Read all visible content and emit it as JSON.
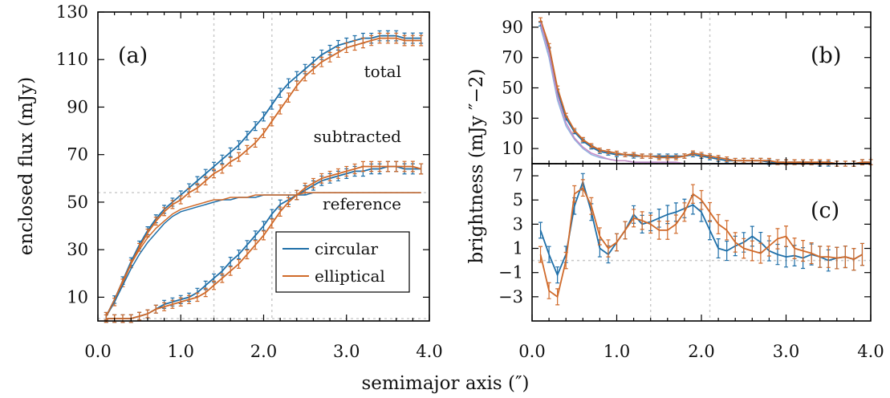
{
  "colors": {
    "circular": "#1f6fa8",
    "elliptical": "#d06a2a",
    "reference_circular": "#8fb3e0",
    "reference_elliptical": "#c48bc6",
    "guide": "#c8c8c8"
  },
  "xlabel": "semimajor axis (″)",
  "legend": {
    "circular": "circular",
    "elliptical": "elliptical"
  },
  "chart_data": [
    {
      "id": "a",
      "type": "line",
      "tag": "(a)",
      "ylabel": "enclosed flux (mJy)",
      "xlim": [
        0.0,
        4.0
      ],
      "ylim": [
        0,
        130
      ],
      "xticks": [
        "0.0",
        "1.0",
        "2.0",
        "3.0",
        "4.0"
      ],
      "yticks": [
        "10",
        "30",
        "50",
        "70",
        "90",
        "110",
        "130"
      ],
      "vlines": [
        1.4,
        2.1
      ],
      "hlines": [
        54,
        1
      ],
      "annotations": {
        "total": "total",
        "subtracted": "subtracted",
        "reference": "reference"
      },
      "x": [
        0.1,
        0.2,
        0.3,
        0.4,
        0.5,
        0.6,
        0.7,
        0.8,
        0.9,
        1.0,
        1.1,
        1.2,
        1.3,
        1.4,
        1.5,
        1.6,
        1.7,
        1.8,
        1.9,
        2.0,
        2.1,
        2.2,
        2.3,
        2.4,
        2.5,
        2.6,
        2.7,
        2.8,
        2.9,
        3.0,
        3.1,
        3.2,
        3.3,
        3.4,
        3.5,
        3.6,
        3.7,
        3.8,
        3.9
      ],
      "series": [
        {
          "name": "circular",
          "group": "total",
          "errorbars": true,
          "values": [
            2,
            9,
            17,
            25,
            32,
            38,
            43,
            47,
            50,
            53,
            56,
            59,
            62,
            65,
            68,
            71,
            74,
            78,
            82,
            86,
            91,
            96,
            100,
            103,
            106,
            109,
            112,
            114,
            116,
            117,
            118,
            119,
            119,
            120,
            120,
            120,
            119,
            119,
            119
          ]
        },
        {
          "name": "elliptical",
          "group": "total",
          "errorbars": true,
          "values": [
            2,
            8,
            16,
            24,
            31,
            37,
            42,
            46,
            49,
            51,
            54,
            56,
            59,
            62,
            64,
            67,
            69,
            72,
            75,
            79,
            84,
            89,
            94,
            99,
            103,
            106,
            109,
            111,
            113,
            115,
            116,
            117,
            118,
            119,
            119,
            119,
            118,
            118,
            118
          ]
        },
        {
          "name": "circular",
          "group": "subtracted",
          "errorbars": true,
          "values": [
            1,
            1,
            1,
            1,
            2,
            3,
            5,
            7,
            8,
            9,
            10,
            12,
            15,
            18,
            21,
            25,
            28,
            32,
            36,
            40,
            45,
            49,
            51,
            53,
            55,
            57,
            59,
            60,
            61,
            62,
            63,
            63,
            64,
            64,
            65,
            65,
            64,
            64,
            64
          ]
        },
        {
          "name": "elliptical",
          "group": "subtracted",
          "errorbars": true,
          "values": [
            1,
            1,
            1,
            1,
            2,
            3,
            5,
            6,
            7,
            8,
            9,
            10,
            12,
            15,
            18,
            21,
            24,
            28,
            32,
            36,
            41,
            46,
            50,
            53,
            56,
            58,
            60,
            61,
            62,
            63,
            64,
            65,
            65,
            65,
            65,
            65,
            65,
            65,
            64
          ]
        },
        {
          "name": "circular",
          "group": "reference",
          "errorbars": false,
          "values": [
            2,
            8,
            15,
            22,
            28,
            33,
            37,
            41,
            44,
            46,
            47,
            48,
            49,
            50,
            51,
            51,
            52,
            52,
            52,
            53,
            53,
            53,
            53,
            53,
            53,
            54,
            54,
            54,
            54,
            54,
            54,
            54,
            54,
            54,
            54,
            54,
            54,
            54,
            54
          ]
        },
        {
          "name": "elliptical",
          "group": "reference",
          "errorbars": false,
          "values": [
            2,
            9,
            17,
            24,
            30,
            35,
            39,
            42,
            45,
            47,
            48,
            49,
            50,
            51,
            51,
            52,
            52,
            52,
            53,
            53,
            53,
            53,
            53,
            53,
            54,
            54,
            54,
            54,
            54,
            54,
            54,
            54,
            54,
            54,
            54,
            54,
            54,
            54,
            54
          ]
        }
      ]
    },
    {
      "id": "b",
      "type": "line",
      "tag": "(b)",
      "ylabel": "brightness (mJy ″−2)",
      "xlim": [
        0.0,
        4.0
      ],
      "ylim": [
        0,
        100
      ],
      "xticks": [],
      "yticks": [
        "10",
        "30",
        "50",
        "70",
        "90"
      ],
      "vlines": [
        1.4,
        2.1
      ],
      "hlines": [
        0
      ],
      "x": [
        0.1,
        0.2,
        0.3,
        0.4,
        0.5,
        0.6,
        0.7,
        0.8,
        0.9,
        1.0,
        1.1,
        1.2,
        1.3,
        1.4,
        1.5,
        1.6,
        1.7,
        1.8,
        1.9,
        2.0,
        2.1,
        2.2,
        2.3,
        2.4,
        2.5,
        2.6,
        2.7,
        2.8,
        2.9,
        3.0,
        3.1,
        3.2,
        3.3,
        3.4,
        3.5,
        3.6,
        3.7,
        3.8,
        3.9,
        4.0
      ],
      "series": [
        {
          "name": "circular",
          "errorbars": true,
          "values": [
            92,
            75,
            48,
            30,
            21,
            15,
            11,
            8,
            7,
            6,
            6,
            5,
            5,
            5,
            5,
            5,
            5,
            5,
            6,
            5,
            4,
            3,
            2,
            2,
            2,
            2,
            2,
            1,
            1,
            1,
            1,
            1,
            1,
            0,
            0,
            0,
            0,
            0,
            1,
            1
          ]
        },
        {
          "name": "elliptical",
          "errorbars": true,
          "values": [
            95,
            78,
            50,
            32,
            22,
            16,
            12,
            9,
            8,
            7,
            6,
            6,
            5,
            5,
            4,
            4,
            4,
            5,
            7,
            6,
            5,
            4,
            3,
            2,
            2,
            2,
            2,
            2,
            1,
            1,
            1,
            1,
            1,
            1,
            1,
            0,
            0,
            0,
            1,
            1
          ]
        },
        {
          "name": "reference circular",
          "errorbars": false,
          "values": [
            90,
            70,
            42,
            25,
            16,
            10,
            6,
            4,
            3,
            2,
            2,
            1,
            1,
            1,
            1,
            1,
            1,
            0,
            0,
            0,
            0,
            0,
            0,
            0,
            0,
            0,
            0,
            0,
            0,
            0,
            0,
            0,
            0,
            0,
            0,
            0,
            0,
            0,
            0,
            0
          ]
        },
        {
          "name": "reference elliptical",
          "errorbars": false,
          "values": [
            93,
            73,
            45,
            27,
            17,
            11,
            7,
            5,
            3,
            2,
            2,
            1,
            1,
            1,
            1,
            1,
            1,
            0,
            0,
            0,
            0,
            0,
            0,
            0,
            0,
            0,
            0,
            0,
            0,
            0,
            0,
            0,
            0,
            0,
            0,
            0,
            0,
            0,
            0,
            0
          ]
        }
      ]
    },
    {
      "id": "c",
      "type": "line",
      "tag": "(c)",
      "xlim": [
        0.0,
        4.0
      ],
      "ylim": [
        -5,
        8
      ],
      "xticks": [
        "0.0",
        "1.0",
        "2.0",
        "3.0",
        "4.0"
      ],
      "yticks": [
        "−3",
        "−1",
        "1",
        "3",
        "5",
        "7"
      ],
      "vlines": [
        1.4,
        2.1
      ],
      "hlines": [
        0
      ],
      "x": [
        0.1,
        0.2,
        0.3,
        0.4,
        0.5,
        0.6,
        0.7,
        0.8,
        0.9,
        1.0,
        1.1,
        1.2,
        1.3,
        1.4,
        1.5,
        1.6,
        1.7,
        1.8,
        1.9,
        2.0,
        2.1,
        2.2,
        2.3,
        2.4,
        2.5,
        2.6,
        2.7,
        2.8,
        2.9,
        3.0,
        3.1,
        3.2,
        3.3,
        3.4,
        3.5,
        3.6,
        3.7,
        3.8,
        3.9
      ],
      "series": [
        {
          "name": "circular",
          "errorbars": true,
          "values": [
            2.5,
            0.5,
            -1.2,
            0.5,
            4.5,
            6.5,
            4.0,
            1.0,
            0.5,
            1.5,
            2.5,
            3.8,
            3.0,
            3.2,
            3.5,
            3.8,
            4.0,
            4.3,
            4.6,
            4.0,
            2.5,
            1.0,
            0.8,
            1.2,
            1.5,
            2.0,
            1.5,
            0.8,
            0.5,
            0.3,
            0.4,
            0.2,
            0.5,
            0.3,
            0.0,
            0.2,
            0.3,
            0.1,
            0.5
          ]
        },
        {
          "name": "elliptical",
          "errorbars": true,
          "values": [
            0.5,
            -2.5,
            -3.0,
            0.0,
            5.5,
            6.0,
            4.5,
            2.0,
            1.0,
            1.5,
            2.5,
            3.5,
            3.3,
            3.0,
            2.5,
            2.5,
            3.0,
            4.0,
            5.5,
            5.0,
            4.0,
            3.0,
            2.5,
            1.5,
            1.0,
            0.8,
            0.6,
            1.2,
            1.8,
            2.0,
            1.0,
            0.8,
            0.6,
            0.3,
            0.3,
            0.2,
            0.3,
            0.1,
            0.5
          ]
        }
      ]
    }
  ]
}
